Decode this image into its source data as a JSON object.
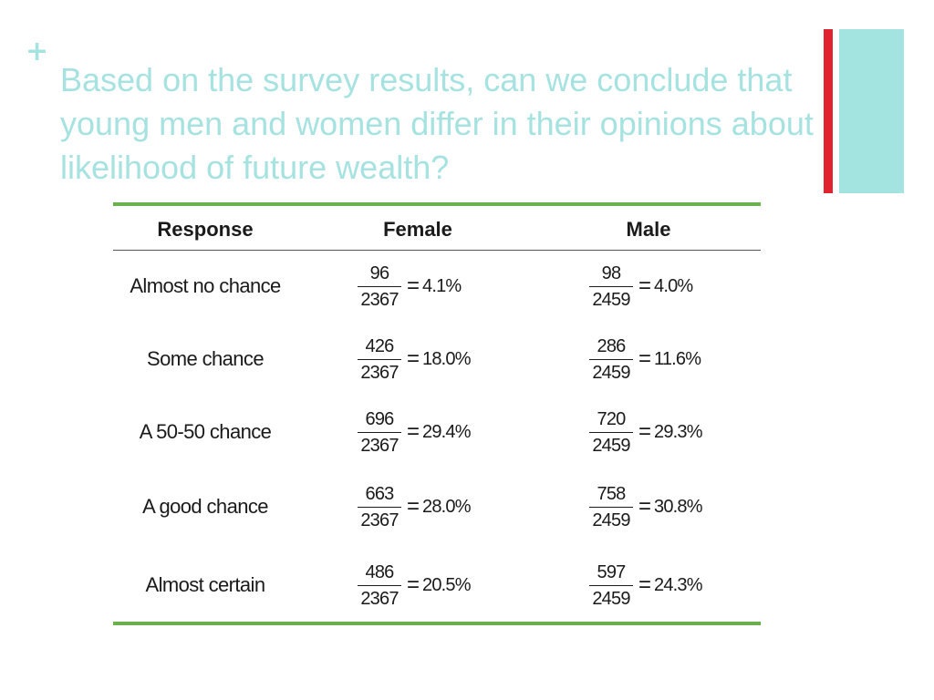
{
  "slide": {
    "marker": "+",
    "title": "Based on the survey results, can we conclude that young men and women differ in their opinions about likelihood of future wealth?",
    "colors": {
      "title": "#a6e2e0",
      "accent_red": "#e1232f",
      "accent_teal": "#a3e4e1",
      "table_rule": "#6ab04c"
    }
  },
  "table": {
    "headers": {
      "response": "Response",
      "female": "Female",
      "male": "Male"
    },
    "rows": [
      {
        "response": "Almost no chance",
        "female": {
          "num": "96",
          "den": "2367",
          "eq": "=",
          "pct": "4.1%"
        },
        "male": {
          "num": "98",
          "den": "2459",
          "eq": "=",
          "pct": "4.0%"
        }
      },
      {
        "response": "Some chance",
        "female": {
          "num": "426",
          "den": "2367",
          "eq": "=",
          "pct": "18.0%"
        },
        "male": {
          "num": "286",
          "den": "2459",
          "eq": "=",
          "pct": "11.6%"
        }
      },
      {
        "response": "A 50-50 chance",
        "female": {
          "num": "696",
          "den": "2367",
          "eq": "=",
          "pct": "29.4%"
        },
        "male": {
          "num": "720",
          "den": "2459",
          "eq": "=",
          "pct": "29.3%"
        }
      },
      {
        "response": "A good chance",
        "female": {
          "num": "663",
          "den": "2367",
          "eq": "=",
          "pct": "28.0%"
        },
        "male": {
          "num": "758",
          "den": "2459",
          "eq": "=",
          "pct": "30.8%"
        }
      },
      {
        "response": "Almost certain",
        "female": {
          "num": "486",
          "den": "2367",
          "eq": "=",
          "pct": "20.5%"
        },
        "male": {
          "num": "597",
          "den": "2459",
          "eq": "=",
          "pct": "24.3%"
        }
      }
    ]
  }
}
